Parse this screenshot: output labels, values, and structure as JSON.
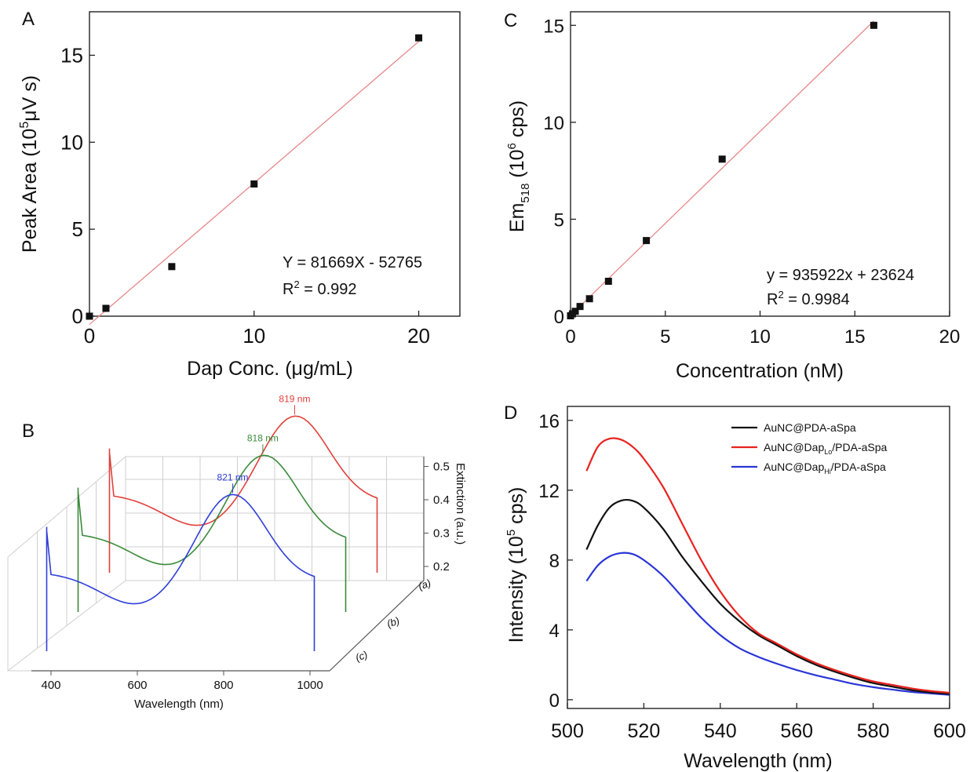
{
  "chart_data": [
    {
      "panel": "A",
      "type": "scatter",
      "xlabel_pre": "Dap Conc. (",
      "xlabel_mu": "μ",
      "xlabel_post": "g/mL)",
      "ylabel_pre": "Peak Area (10",
      "ylabel_exp": "5",
      "ylabel_mu": "μ",
      "ylabel_post": "V s)",
      "xlim": [
        0,
        22.5
      ],
      "ylim": [
        0,
        17.5
      ],
      "xticks": [
        0,
        10,
        20
      ],
      "yticks": [
        0,
        5,
        10,
        15
      ],
      "x": [
        0,
        1,
        5,
        10,
        20
      ],
      "y": [
        0,
        0.45,
        2.85,
        7.6,
        16.0
      ],
      "fit_color": "#e8888a",
      "equation": "Y = 81669X - 52765",
      "r2_label": "R",
      "r2_sup": "2",
      "r2_value": " = 0.992"
    },
    {
      "panel": "B",
      "type": "line",
      "xlabel": "Wavelength (nm)",
      "zlabel": "Extinction (a.u.)",
      "xticks": [
        400,
        600,
        800,
        1000
      ],
      "zticks": [
        0.2,
        0.3,
        0.4,
        0.5
      ],
      "series": [
        {
          "name": "(a)",
          "color": "#e0403a",
          "peak_label": "819 nm",
          "peak_nm": 819
        },
        {
          "name": "(b)",
          "color": "#3a8a3a",
          "peak_label": "818 nm",
          "peak_nm": 818
        },
        {
          "name": "(c)",
          "color": "#2f3fd8",
          "peak_label": "821 nm",
          "peak_nm": 821
        }
      ]
    },
    {
      "panel": "C",
      "type": "scatter",
      "xlabel": "Concentration (nM)",
      "ylabel_pre": "Em",
      "ylabel_sub": "518",
      "ylabel_mid": "  (10",
      "ylabel_exp": "6",
      "ylabel_post": " cps)",
      "xlim": [
        0,
        20
      ],
      "ylim": [
        0,
        15.7
      ],
      "xticks": [
        0,
        5,
        10,
        15,
        20
      ],
      "yticks": [
        0,
        5,
        10,
        15
      ],
      "x": [
        0,
        0.1,
        0.25,
        0.5,
        1,
        2,
        4,
        8,
        16
      ],
      "y": [
        0.02,
        0.12,
        0.25,
        0.5,
        0.9,
        1.8,
        3.9,
        8.1,
        15.0
      ],
      "fit_color": "#e8888a",
      "equation": "y = 935922x + 23624",
      "r2_label": "R",
      "r2_sup": "2",
      "r2_value": " = 0.9984"
    },
    {
      "panel": "D",
      "type": "line",
      "xlabel": "Wavelength (nm)",
      "ylabel_pre": "Intensity (10",
      "ylabel_exp": "5",
      "ylabel_post": " cps)",
      "xlim": [
        500,
        600
      ],
      "ylim": [
        -0.5,
        16.8
      ],
      "xticks": [
        500,
        520,
        540,
        560,
        580,
        600
      ],
      "yticks": [
        0,
        4,
        8,
        12,
        16
      ],
      "x": [
        505,
        508,
        511,
        514,
        517,
        520,
        525,
        530,
        535,
        540,
        545,
        550,
        555,
        560,
        565,
        570,
        575,
        580,
        585,
        590,
        595,
        600
      ],
      "series": [
        {
          "name_pre": "AuNC@PDA-aSpa",
          "name_sub": "",
          "name_post": "",
          "color": "#111111",
          "values": [
            8.6,
            10.0,
            11.0,
            11.4,
            11.4,
            11.0,
            9.8,
            8.2,
            6.8,
            5.5,
            4.5,
            3.7,
            3.1,
            2.5,
            2.0,
            1.6,
            1.25,
            0.95,
            0.75,
            0.55,
            0.42,
            0.33
          ]
        },
        {
          "name_pre": "AuNC@Dap",
          "name_sub": "Lo",
          "name_post": "/PDA-aSpa",
          "color": "#e8231f",
          "values": [
            13.1,
            14.5,
            14.95,
            14.9,
            14.5,
            13.8,
            12.2,
            10.1,
            8.0,
            6.2,
            4.8,
            3.8,
            3.2,
            2.6,
            2.1,
            1.7,
            1.35,
            1.05,
            0.85,
            0.65,
            0.5,
            0.4
          ]
        },
        {
          "name_pre": "AuNC@Dap",
          "name_sub": "Hi",
          "name_post": "/PDA-aSpa",
          "color": "#2a35d6",
          "values": [
            6.8,
            7.7,
            8.2,
            8.4,
            8.35,
            8.0,
            7.1,
            5.9,
            4.7,
            3.7,
            2.95,
            2.45,
            2.05,
            1.7,
            1.4,
            1.15,
            0.9,
            0.72,
            0.58,
            0.45,
            0.36,
            0.28
          ]
        }
      ]
    }
  ]
}
